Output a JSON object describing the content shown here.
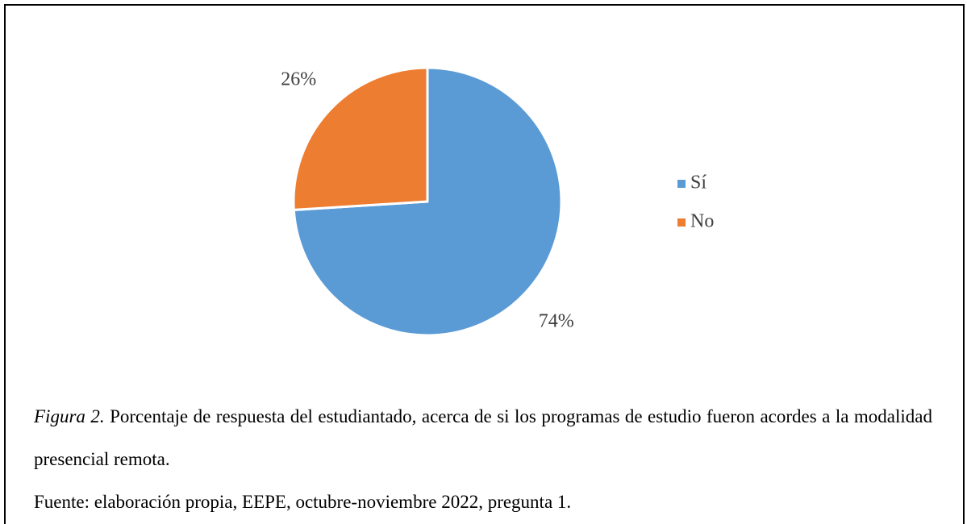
{
  "chart_data": {
    "type": "pie",
    "categories": [
      "Sí",
      "No"
    ],
    "values": [
      74,
      26
    ],
    "value_labels": [
      "74%",
      "26%"
    ],
    "colors": [
      "#5b9bd5",
      "#ed7d31"
    ],
    "legend": "right"
  },
  "caption": {
    "label": "Figura 2.",
    "text": "Porcentaje de respuesta del estudiantado, acerca de si los programas de estudio fueron acordes a la modalidad presencial remota.",
    "source": "Fuente: elaboración propia, EEPE, octubre-noviembre 2022, pregunta 1."
  }
}
